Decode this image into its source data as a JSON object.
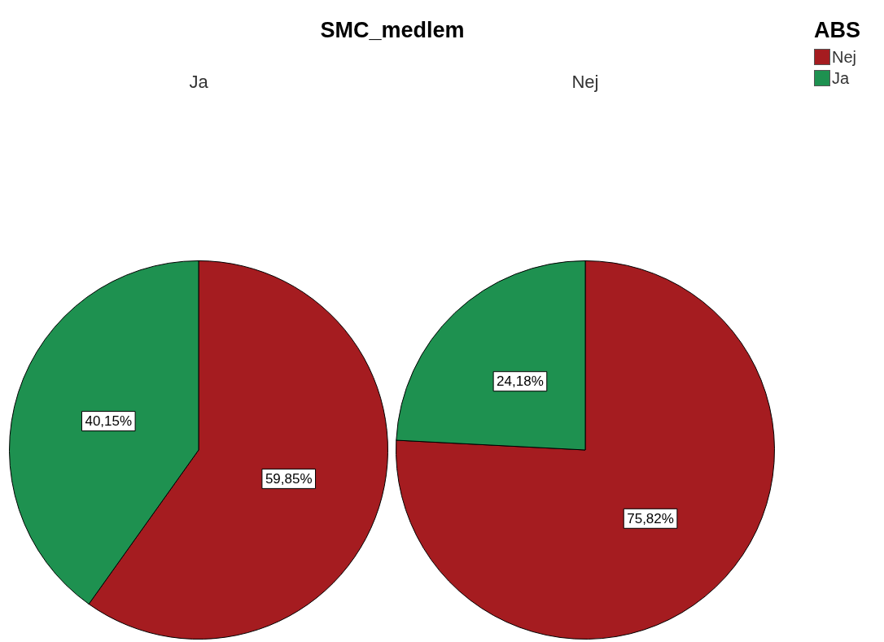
{
  "chart_data": [
    {
      "type": "pie",
      "title": "SMC_medlem",
      "subtitle": "Ja",
      "categories": [
        "Nej",
        "Ja"
      ],
      "values": [
        59.85,
        40.15
      ],
      "colors": [
        "#a51c20",
        "#1e9150"
      ],
      "value_labels": [
        "59,85%",
        "40,15%"
      ],
      "legend": "top right",
      "legend_title": "ABS"
    },
    {
      "type": "pie",
      "subtitle": "Nej",
      "categories": [
        null,
        null
      ],
      "values": [
        75.82,
        24.18
      ],
      "colors": [
        "#a51c20",
        "#1e9150"
      ],
      "value_labels": [
        "75,82%",
        "24,18%"
      ],
      "legend": false
    }
  ]
}
